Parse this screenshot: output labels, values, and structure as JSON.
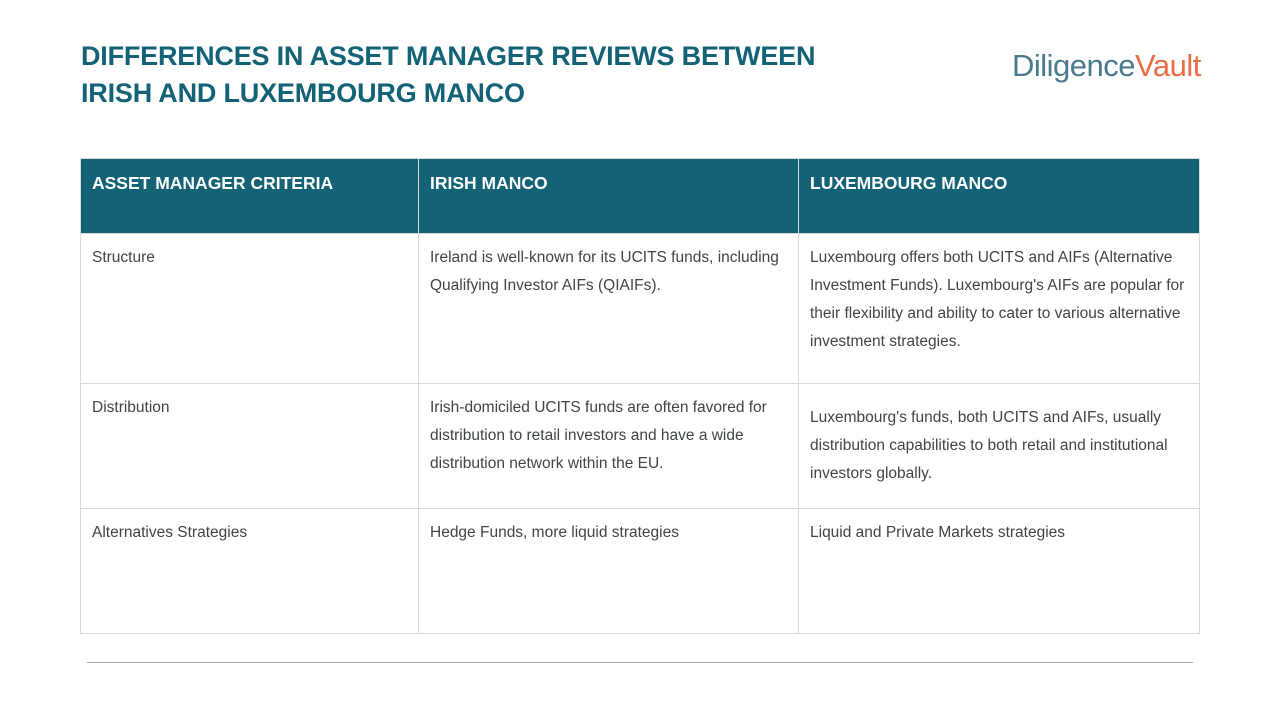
{
  "slide": {
    "title_line1": "DIFFERENCES IN ASSET MANAGER REVIEWS BETWEEN",
    "title_line2": "IRISH AND LUXEMBOURG MANCO"
  },
  "logo": {
    "part1": "Diligence",
    "part2": "Vault"
  },
  "colors": {
    "title_teal": "#136276",
    "header_background": "#136276",
    "logo_blue": "#4a7a8e",
    "logo_orange": "#e96e47",
    "body_text": "#3f4447",
    "table_border": "#d9d9d9"
  },
  "table": {
    "headers": [
      "ASSET MANAGER CRITERIA",
      "IRISH MANCO",
      "LUXEMBOURG MANCO"
    ],
    "rows": [
      {
        "criteria": "Structure",
        "irish": "Ireland is well-known for its UCITS funds, including Qualifying Investor AIFs (QIAIFs).",
        "luxembourg": "Luxembourg offers both UCITS and AIFs (Alternative Investment Funds). Luxembourg's AIFs are popular for their flexibility and ability to cater to various alternative investment strategies."
      },
      {
        "criteria": "Distribution",
        "irish": "Irish-domiciled UCITS funds are often favored for distribution to retail investors and have a wide distribution network within the EU.",
        "luxembourg": "Luxembourg's funds, both UCITS and AIFs, usually distribution capabilities to both retail and institutional investors globally."
      },
      {
        "criteria": "Alternatives Strategies",
        "irish": "Hedge Funds, more liquid strategies",
        "luxembourg": "Liquid and Private Markets strategies"
      }
    ]
  }
}
